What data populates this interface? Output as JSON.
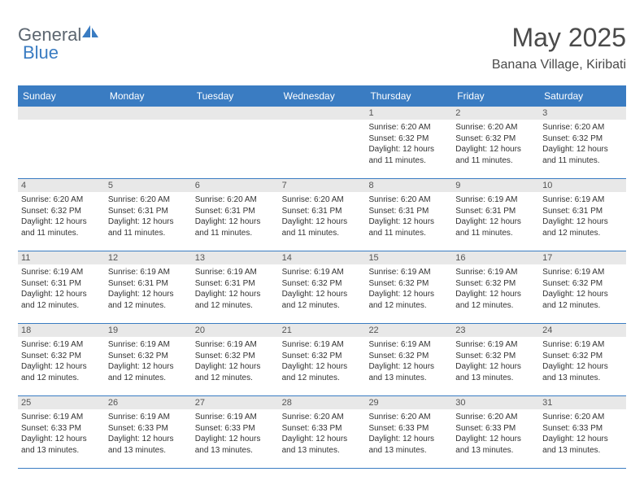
{
  "logo": {
    "text_general": "General",
    "text_blue": "Blue",
    "icon_color": "#3a7cc2"
  },
  "header": {
    "month_title": "May 2025",
    "location": "Banana Village, Kiribati",
    "title_color": "#4a4a4a",
    "fontsize_title": 32,
    "fontsize_location": 16
  },
  "calendar": {
    "header_bg_color": "#3a7cc2",
    "header_text_color": "#ffffff",
    "grid_border_color": "#3a7cc2",
    "daynum_bg_color": "#e8e8e8",
    "weekdays": [
      "Sunday",
      "Monday",
      "Tuesday",
      "Wednesday",
      "Thursday",
      "Friday",
      "Saturday"
    ],
    "weekday_fontsize": 12,
    "daynum_fontsize": 11,
    "content_fontsize": 10,
    "weeks": [
      [
        {
          "num": "",
          "sunrise": "",
          "sunset": "",
          "daylight": ""
        },
        {
          "num": "",
          "sunrise": "",
          "sunset": "",
          "daylight": ""
        },
        {
          "num": "",
          "sunrise": "",
          "sunset": "",
          "daylight": ""
        },
        {
          "num": "",
          "sunrise": "",
          "sunset": "",
          "daylight": ""
        },
        {
          "num": "1",
          "sunrise": "Sunrise: 6:20 AM",
          "sunset": "Sunset: 6:32 PM",
          "daylight": "Daylight: 12 hours and 11 minutes."
        },
        {
          "num": "2",
          "sunrise": "Sunrise: 6:20 AM",
          "sunset": "Sunset: 6:32 PM",
          "daylight": "Daylight: 12 hours and 11 minutes."
        },
        {
          "num": "3",
          "sunrise": "Sunrise: 6:20 AM",
          "sunset": "Sunset: 6:32 PM",
          "daylight": "Daylight: 12 hours and 11 minutes."
        }
      ],
      [
        {
          "num": "4",
          "sunrise": "Sunrise: 6:20 AM",
          "sunset": "Sunset: 6:32 PM",
          "daylight": "Daylight: 12 hours and 11 minutes."
        },
        {
          "num": "5",
          "sunrise": "Sunrise: 6:20 AM",
          "sunset": "Sunset: 6:31 PM",
          "daylight": "Daylight: 12 hours and 11 minutes."
        },
        {
          "num": "6",
          "sunrise": "Sunrise: 6:20 AM",
          "sunset": "Sunset: 6:31 PM",
          "daylight": "Daylight: 12 hours and 11 minutes."
        },
        {
          "num": "7",
          "sunrise": "Sunrise: 6:20 AM",
          "sunset": "Sunset: 6:31 PM",
          "daylight": "Daylight: 12 hours and 11 minutes."
        },
        {
          "num": "8",
          "sunrise": "Sunrise: 6:20 AM",
          "sunset": "Sunset: 6:31 PM",
          "daylight": "Daylight: 12 hours and 11 minutes."
        },
        {
          "num": "9",
          "sunrise": "Sunrise: 6:19 AM",
          "sunset": "Sunset: 6:31 PM",
          "daylight": "Daylight: 12 hours and 11 minutes."
        },
        {
          "num": "10",
          "sunrise": "Sunrise: 6:19 AM",
          "sunset": "Sunset: 6:31 PM",
          "daylight": "Daylight: 12 hours and 12 minutes."
        }
      ],
      [
        {
          "num": "11",
          "sunrise": "Sunrise: 6:19 AM",
          "sunset": "Sunset: 6:31 PM",
          "daylight": "Daylight: 12 hours and 12 minutes."
        },
        {
          "num": "12",
          "sunrise": "Sunrise: 6:19 AM",
          "sunset": "Sunset: 6:31 PM",
          "daylight": "Daylight: 12 hours and 12 minutes."
        },
        {
          "num": "13",
          "sunrise": "Sunrise: 6:19 AM",
          "sunset": "Sunset: 6:31 PM",
          "daylight": "Daylight: 12 hours and 12 minutes."
        },
        {
          "num": "14",
          "sunrise": "Sunrise: 6:19 AM",
          "sunset": "Sunset: 6:32 PM",
          "daylight": "Daylight: 12 hours and 12 minutes."
        },
        {
          "num": "15",
          "sunrise": "Sunrise: 6:19 AM",
          "sunset": "Sunset: 6:32 PM",
          "daylight": "Daylight: 12 hours and 12 minutes."
        },
        {
          "num": "16",
          "sunrise": "Sunrise: 6:19 AM",
          "sunset": "Sunset: 6:32 PM",
          "daylight": "Daylight: 12 hours and 12 minutes."
        },
        {
          "num": "17",
          "sunrise": "Sunrise: 6:19 AM",
          "sunset": "Sunset: 6:32 PM",
          "daylight": "Daylight: 12 hours and 12 minutes."
        }
      ],
      [
        {
          "num": "18",
          "sunrise": "Sunrise: 6:19 AM",
          "sunset": "Sunset: 6:32 PM",
          "daylight": "Daylight: 12 hours and 12 minutes."
        },
        {
          "num": "19",
          "sunrise": "Sunrise: 6:19 AM",
          "sunset": "Sunset: 6:32 PM",
          "daylight": "Daylight: 12 hours and 12 minutes."
        },
        {
          "num": "20",
          "sunrise": "Sunrise: 6:19 AM",
          "sunset": "Sunset: 6:32 PM",
          "daylight": "Daylight: 12 hours and 12 minutes."
        },
        {
          "num": "21",
          "sunrise": "Sunrise: 6:19 AM",
          "sunset": "Sunset: 6:32 PM",
          "daylight": "Daylight: 12 hours and 12 minutes."
        },
        {
          "num": "22",
          "sunrise": "Sunrise: 6:19 AM",
          "sunset": "Sunset: 6:32 PM",
          "daylight": "Daylight: 12 hours and 13 minutes."
        },
        {
          "num": "23",
          "sunrise": "Sunrise: 6:19 AM",
          "sunset": "Sunset: 6:32 PM",
          "daylight": "Daylight: 12 hours and 13 minutes."
        },
        {
          "num": "24",
          "sunrise": "Sunrise: 6:19 AM",
          "sunset": "Sunset: 6:32 PM",
          "daylight": "Daylight: 12 hours and 13 minutes."
        }
      ],
      [
        {
          "num": "25",
          "sunrise": "Sunrise: 6:19 AM",
          "sunset": "Sunset: 6:33 PM",
          "daylight": "Daylight: 12 hours and 13 minutes."
        },
        {
          "num": "26",
          "sunrise": "Sunrise: 6:19 AM",
          "sunset": "Sunset: 6:33 PM",
          "daylight": "Daylight: 12 hours and 13 minutes."
        },
        {
          "num": "27",
          "sunrise": "Sunrise: 6:19 AM",
          "sunset": "Sunset: 6:33 PM",
          "daylight": "Daylight: 12 hours and 13 minutes."
        },
        {
          "num": "28",
          "sunrise": "Sunrise: 6:20 AM",
          "sunset": "Sunset: 6:33 PM",
          "daylight": "Daylight: 12 hours and 13 minutes."
        },
        {
          "num": "29",
          "sunrise": "Sunrise: 6:20 AM",
          "sunset": "Sunset: 6:33 PM",
          "daylight": "Daylight: 12 hours and 13 minutes."
        },
        {
          "num": "30",
          "sunrise": "Sunrise: 6:20 AM",
          "sunset": "Sunset: 6:33 PM",
          "daylight": "Daylight: 12 hours and 13 minutes."
        },
        {
          "num": "31",
          "sunrise": "Sunrise: 6:20 AM",
          "sunset": "Sunset: 6:33 PM",
          "daylight": "Daylight: 12 hours and 13 minutes."
        }
      ]
    ]
  }
}
